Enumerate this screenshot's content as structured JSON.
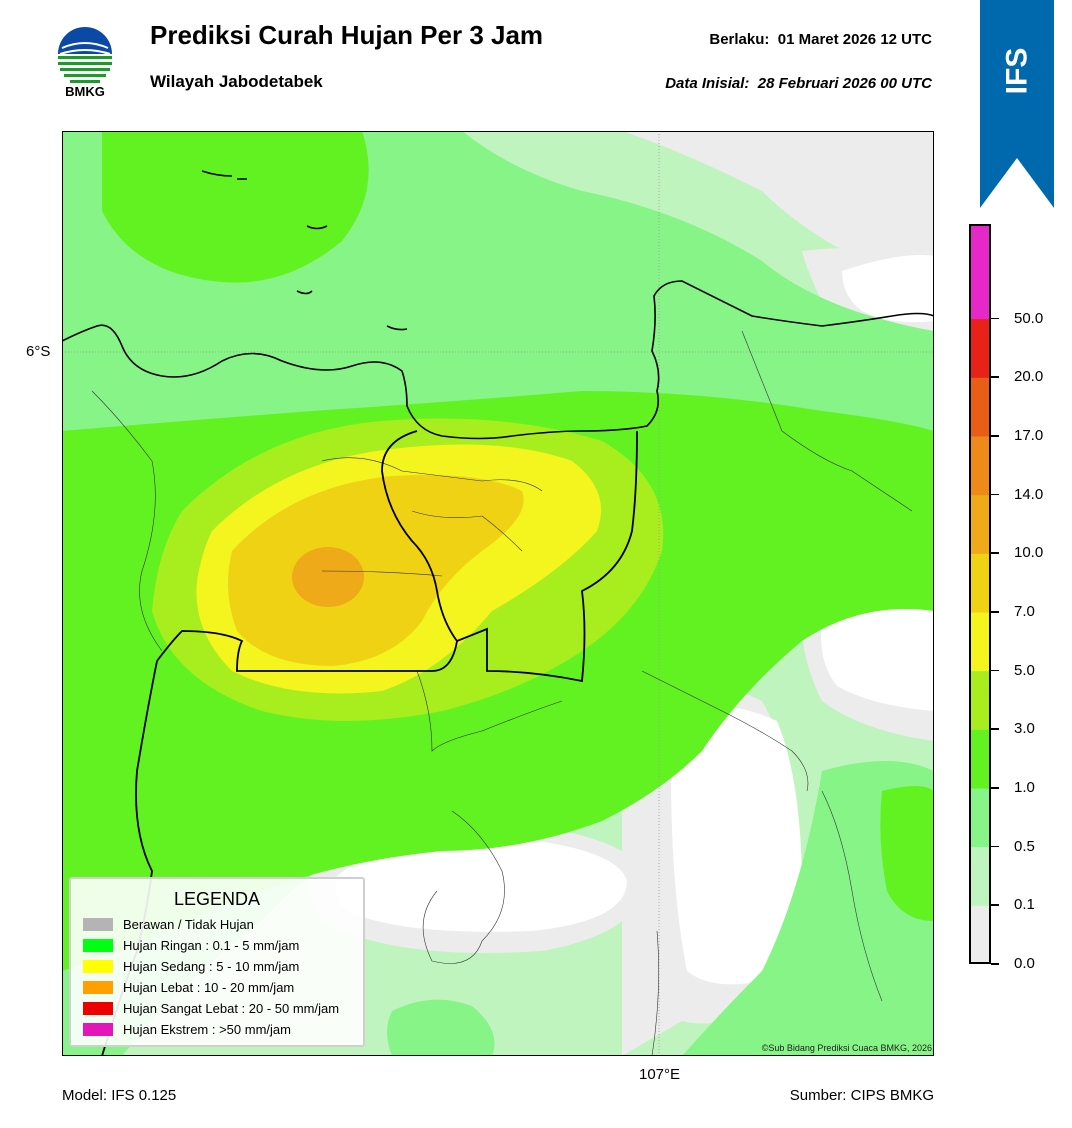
{
  "header": {
    "logo_text": "BMKG",
    "title": "Prediksi Curah Hujan Per 3 Jam",
    "subtitle": "Wilayah Jabodetabek",
    "valid_label": "Berlaku:",
    "valid_time": "01 Maret 2026 12 UTC",
    "init_label": "Data Inisial:",
    "init_time": "28 Februari 2026 00 UTC"
  },
  "ribbon": {
    "label": "IFS",
    "color": "#0069ae"
  },
  "map": {
    "lat_label": "6°S",
    "lon_label": "107°E",
    "copyright": "©Sub Bidang Prediksi Cuaca BMKG, 2026"
  },
  "legend": {
    "title": "LEGENDA",
    "items": [
      {
        "label": "Berawan / Tidak Hujan",
        "color": "#b4b4b4"
      },
      {
        "label": "Hujan Ringan : 0.1 - 5 mm/jam",
        "color": "#00ff12"
      },
      {
        "label": "Hujan Sedang : 5 - 10 mm/jam",
        "color": "#ffff00"
      },
      {
        "label": "Hujan Lebat : 10 - 20 mm/jam",
        "color": "#ffa000"
      },
      {
        "label": "Hujan Sangat Lebat : 20 - 50 mm/jam",
        "color": "#ee0000"
      },
      {
        "label": "Hujan Ekstrem : >50 mm/jam",
        "color": "#e516b9"
      }
    ]
  },
  "colorbar": {
    "ticks": [
      "0.0",
      "0.1",
      "0.5",
      "1.0",
      "3.0",
      "5.0",
      "7.0",
      "10.0",
      "14.0",
      "17.0",
      "20.0",
      "50.0"
    ],
    "colors": [
      "#ececec",
      "#c0f4be",
      "#86f486",
      "#62f222",
      "#a8ee1e",
      "#f4f41e",
      "#f0d214",
      "#eeaa18",
      "#ee8a1a",
      "#e85e16",
      "#e82218",
      "#e628c8"
    ]
  },
  "footer": {
    "model": "Model: IFS 0.125",
    "source": "Sumber: CIPS BMKG"
  }
}
